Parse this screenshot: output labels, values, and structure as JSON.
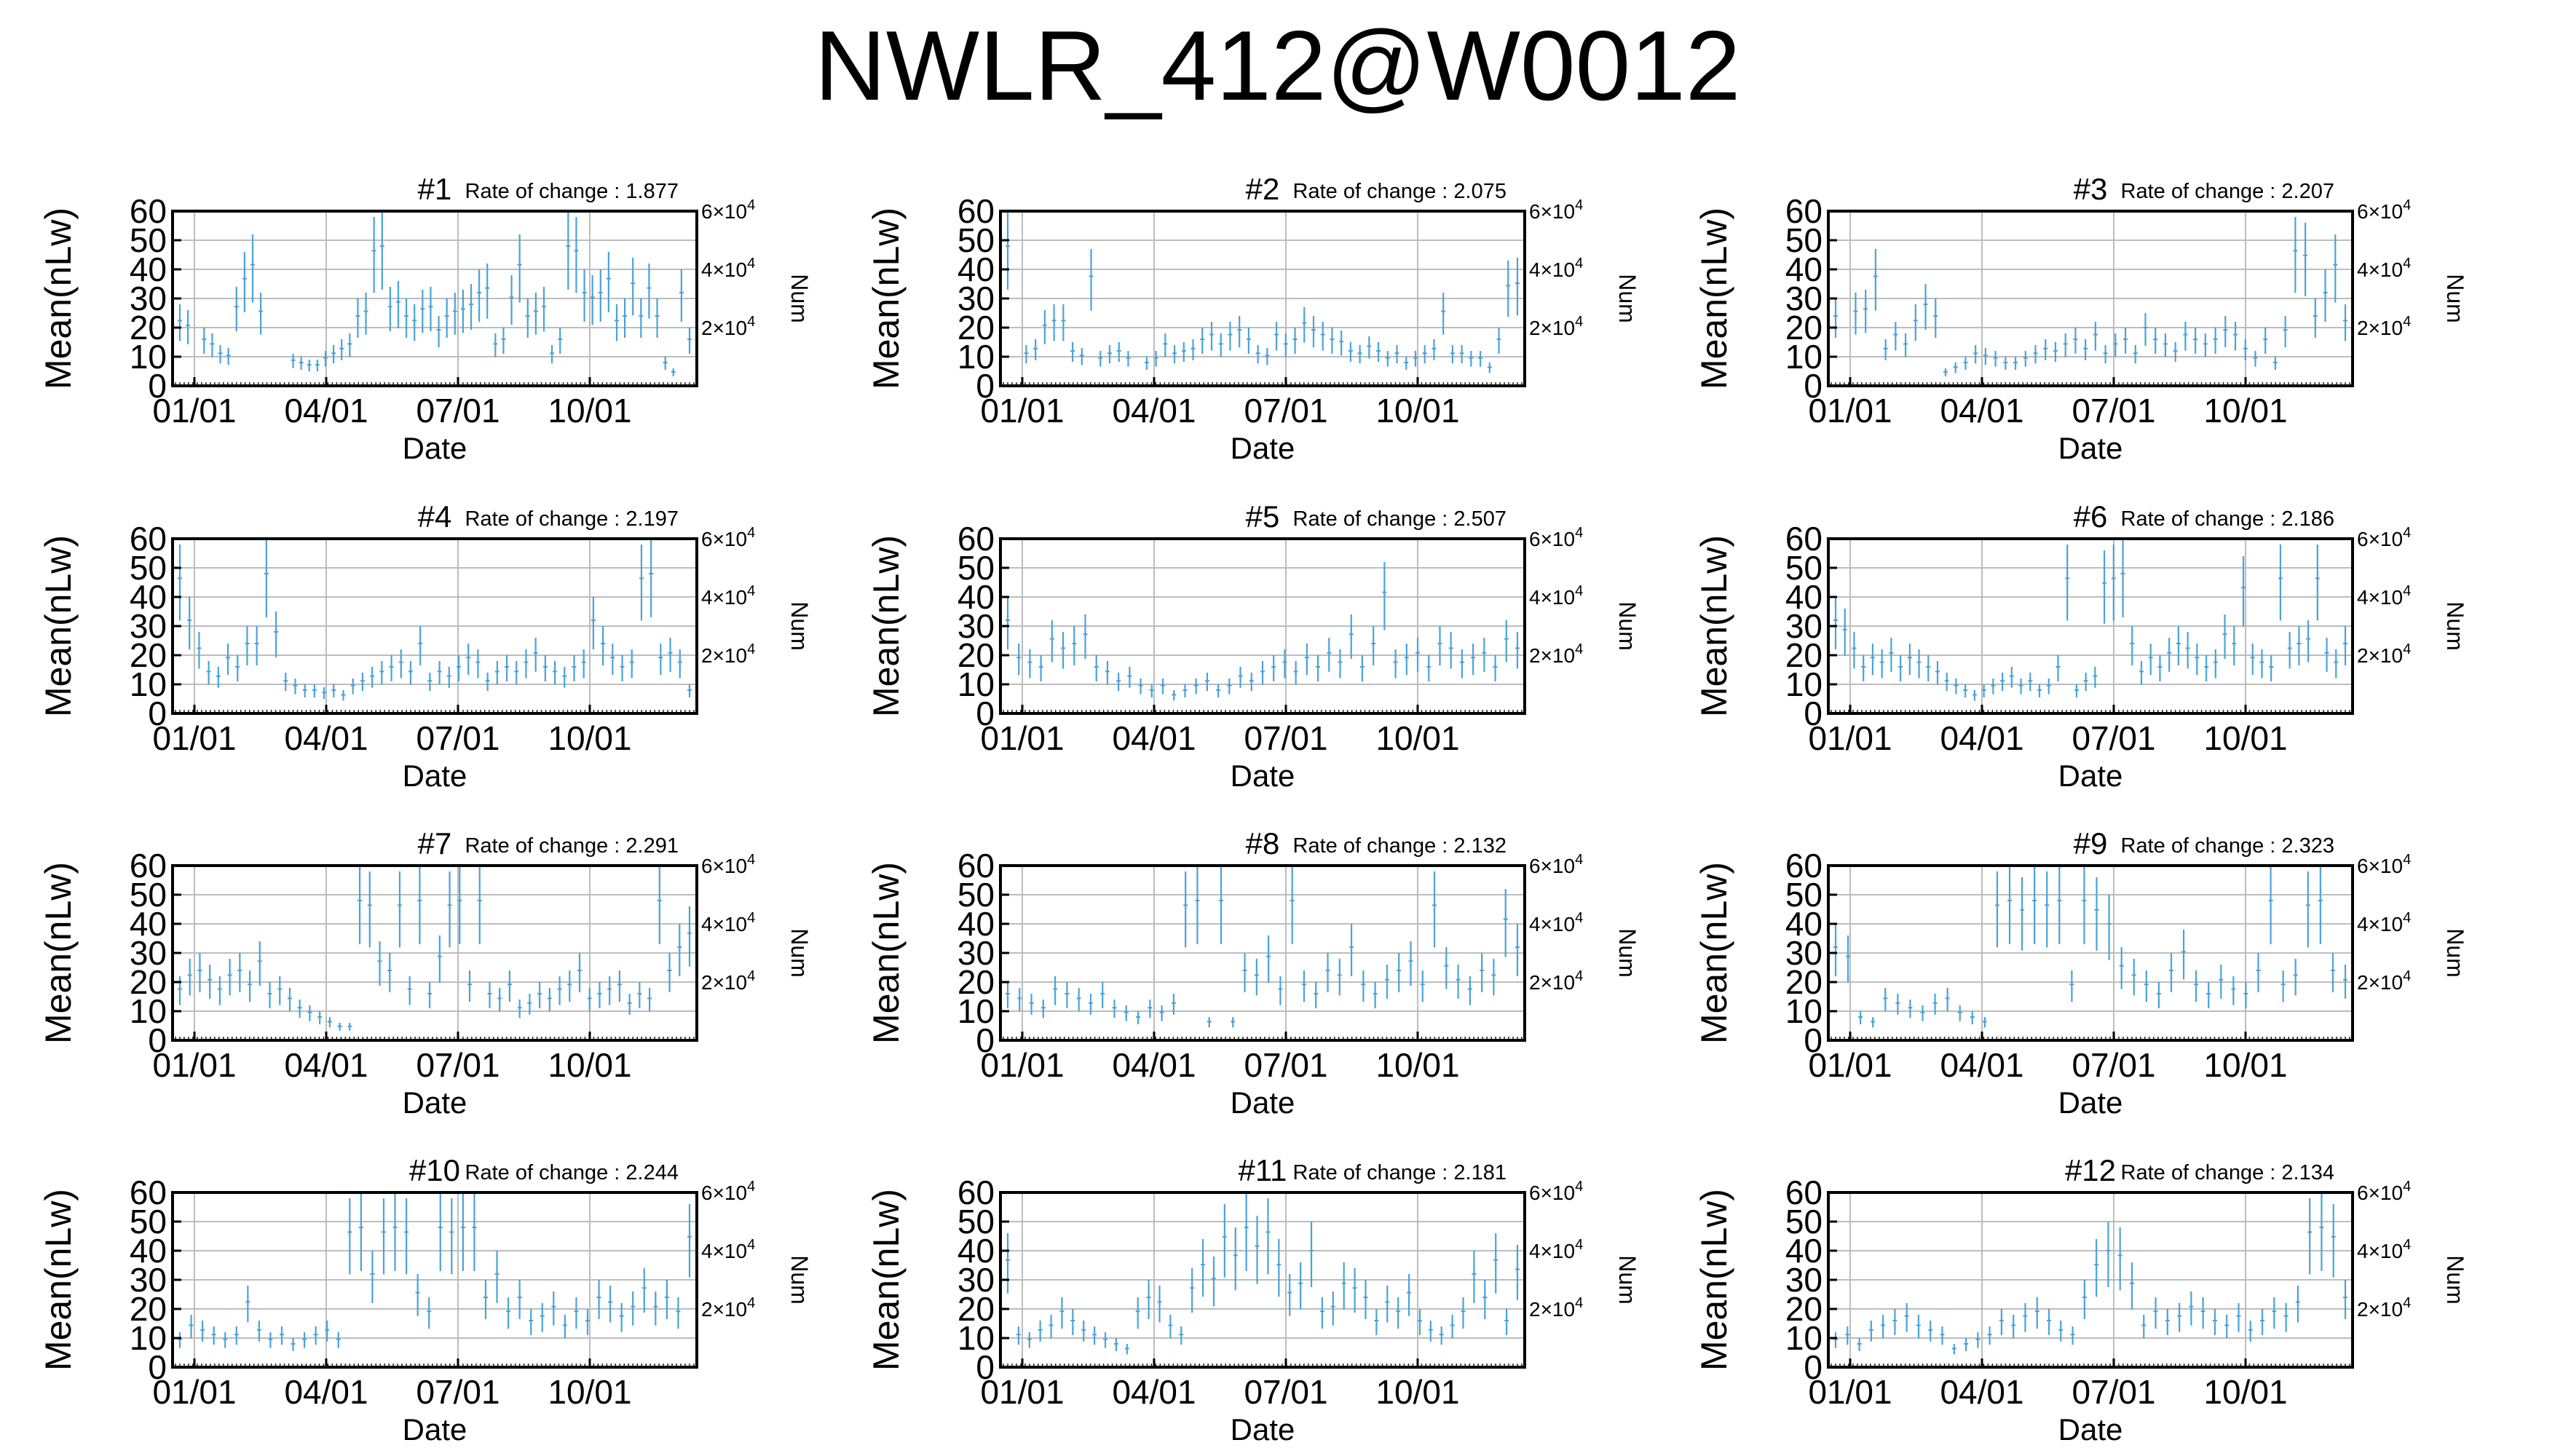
{
  "title": "NWLR_412@W0012",
  "common": {
    "ylabel": "Mean(nLw)",
    "xlabel": "Date",
    "y2label": "Num",
    "yticks": [
      0,
      10,
      20,
      30,
      40,
      50,
      60
    ],
    "ylim": [
      0,
      60
    ],
    "y2ticks_exp": [
      {
        "mant": "2",
        "exp": "4"
      },
      {
        "mant": "4",
        "exp": "4"
      },
      {
        "mant": "6",
        "exp": "4"
      }
    ],
    "xticks": [
      "01/01",
      "04/01",
      "07/01",
      "10/01"
    ],
    "rate_prefix": "Rate of change : ",
    "line_color": "#4aa3d8"
  },
  "chart_data": [
    {
      "type": "bar",
      "title": "#1",
      "rate": "1.877",
      "values": [
        28,
        26,
        0,
        20,
        18,
        14,
        13,
        34,
        46,
        52,
        32,
        0,
        0,
        0,
        11,
        10,
        9,
        9,
        12,
        14,
        16,
        18,
        30,
        32,
        58,
        60,
        34,
        36,
        30,
        28,
        33,
        34,
        24,
        30,
        32,
        33,
        35,
        40,
        42,
        18,
        20,
        38,
        52,
        30,
        32,
        34,
        14,
        20,
        60,
        58,
        40,
        38,
        40,
        46,
        28,
        30,
        44,
        30,
        42,
        30,
        10,
        6,
        40,
        20
      ]
    },
    {
      "type": "bar",
      "title": "#2",
      "rate": "2.075",
      "values": [
        60,
        0,
        14,
        16,
        26,
        28,
        28,
        15,
        13,
        47,
        12,
        14,
        15,
        12,
        0,
        10,
        12,
        18,
        14,
        15,
        16,
        20,
        22,
        18,
        22,
        24,
        20,
        14,
        13,
        22,
        18,
        20,
        27,
        24,
        22,
        20,
        19,
        15,
        14,
        17,
        15,
        12,
        14,
        10,
        12,
        14,
        16,
        32,
        14,
        14,
        12,
        12,
        8,
        20,
        43,
        44
      ]
    },
    {
      "type": "bar",
      "title": "#3",
      "rate": "2.207",
      "values": [
        30,
        0,
        32,
        33,
        47,
        16,
        22,
        18,
        28,
        35,
        30,
        6,
        8,
        10,
        14,
        13,
        12,
        10,
        10,
        12,
        14,
        16,
        15,
        18,
        20,
        16,
        22,
        14,
        18,
        20,
        14,
        25,
        20,
        18,
        15,
        22,
        20,
        18,
        20,
        24,
        22,
        16,
        12,
        20,
        10,
        24,
        58,
        56,
        30,
        40,
        52,
        28
      ]
    },
    {
      "type": "bar",
      "title": "#4",
      "rate": "2.197",
      "values": [
        58,
        40,
        28,
        18,
        16,
        24,
        20,
        30,
        30,
        60,
        35,
        14,
        12,
        10,
        10,
        9,
        10,
        8,
        12,
        14,
        16,
        18,
        20,
        22,
        18,
        30,
        14,
        18,
        16,
        20,
        24,
        22,
        14,
        18,
        20,
        18,
        22,
        26,
        20,
        18,
        16,
        20,
        22,
        40,
        30,
        24,
        20,
        22,
        58,
        60,
        24,
        26,
        22,
        10
      ]
    },
    {
      "type": "bar",
      "title": "#5",
      "rate": "2.507",
      "values": [
        40,
        24,
        22,
        20,
        32,
        28,
        30,
        34,
        20,
        18,
        14,
        16,
        12,
        10,
        12,
        8,
        10,
        12,
        14,
        10,
        12,
        16,
        14,
        18,
        20,
        22,
        18,
        24,
        20,
        26,
        22,
        34,
        20,
        30,
        52,
        22,
        24,
        26,
        20,
        30,
        28,
        22,
        24,
        26,
        20,
        32,
        28
      ]
    },
    {
      "type": "bar",
      "title": "#6",
      "rate": "2.186",
      "values": [
        40,
        36,
        28,
        20,
        24,
        22,
        26,
        20,
        24,
        22,
        20,
        18,
        14,
        12,
        10,
        8,
        10,
        12,
        14,
        16,
        12,
        14,
        10,
        12,
        20,
        58,
        10,
        14,
        16,
        56,
        58,
        60,
        30,
        18,
        24,
        20,
        26,
        30,
        28,
        24,
        20,
        22,
        34,
        30,
        54,
        24,
        22,
        20,
        58,
        28,
        30,
        32,
        58,
        26,
        22,
        30
      ]
    },
    {
      "type": "bar",
      "title": "#7",
      "rate": "2.291",
      "values": [
        22,
        28,
        30,
        26,
        22,
        28,
        30,
        24,
        34,
        20,
        22,
        18,
        14,
        12,
        10,
        8,
        6,
        6,
        60,
        58,
        34,
        30,
        58,
        22,
        60,
        20,
        36,
        58,
        60,
        24,
        60,
        20,
        18,
        24,
        14,
        16,
        20,
        18,
        22,
        24,
        30,
        18,
        20,
        22,
        24,
        16,
        20,
        18,
        60,
        30,
        40,
        46
      ]
    },
    {
      "type": "bar",
      "title": "#8",
      "rate": "2.132",
      "values": [
        20,
        18,
        16,
        14,
        22,
        20,
        18,
        16,
        20,
        14,
        12,
        10,
        14,
        12,
        16,
        58,
        60,
        8,
        60,
        8,
        30,
        28,
        36,
        22,
        60,
        24,
        20,
        30,
        28,
        40,
        24,
        20,
        26,
        30,
        34,
        24,
        58,
        32,
        26,
        22,
        30,
        28,
        52,
        40
      ]
    },
    {
      "type": "bar",
      "title": "#9",
      "rate": "2.323",
      "values": [
        40,
        36,
        10,
        8,
        18,
        16,
        14,
        12,
        16,
        18,
        12,
        10,
        8,
        58,
        60,
        56,
        60,
        58,
        60,
        24,
        60,
        56,
        50,
        32,
        28,
        24,
        20,
        30,
        38,
        24,
        20,
        26,
        22,
        20,
        30,
        60,
        24,
        28,
        58,
        60,
        30,
        26
      ]
    },
    {
      "type": "bar",
      "title": "#10",
      "rate": "2.244",
      "values": [
        12,
        18,
        16,
        14,
        12,
        14,
        28,
        16,
        12,
        14,
        10,
        12,
        14,
        16,
        12,
        58,
        60,
        40,
        58,
        60,
        58,
        32,
        24,
        60,
        58,
        60,
        60,
        30,
        40,
        24,
        30,
        20,
        22,
        26,
        18,
        24,
        20,
        30,
        28,
        22,
        26,
        34,
        26,
        30,
        24,
        56
      ]
    },
    {
      "type": "bar",
      "title": "#11",
      "rate": "2.181",
      "values": [
        46,
        14,
        12,
        16,
        18,
        24,
        20,
        16,
        14,
        12,
        10,
        8,
        24,
        30,
        28,
        18,
        14,
        34,
        44,
        38,
        56,
        48,
        60,
        52,
        58,
        44,
        32,
        36,
        50,
        24,
        26,
        36,
        34,
        30,
        20,
        28,
        24,
        32,
        20,
        16,
        14,
        18,
        24,
        40,
        30,
        46,
        20,
        42
      ]
    },
    {
      "type": "bar",
      "title": "#12",
      "rate": "2.134",
      "values": [
        12,
        14,
        10,
        16,
        18,
        20,
        22,
        18,
        16,
        14,
        8,
        10,
        12,
        14,
        20,
        18,
        22,
        24,
        20,
        16,
        14,
        30,
        44,
        50,
        48,
        36,
        18,
        24,
        20,
        22,
        26,
        24,
        20,
        18,
        22,
        16,
        20,
        24,
        22,
        28,
        58,
        60,
        56,
        30
      ]
    }
  ]
}
